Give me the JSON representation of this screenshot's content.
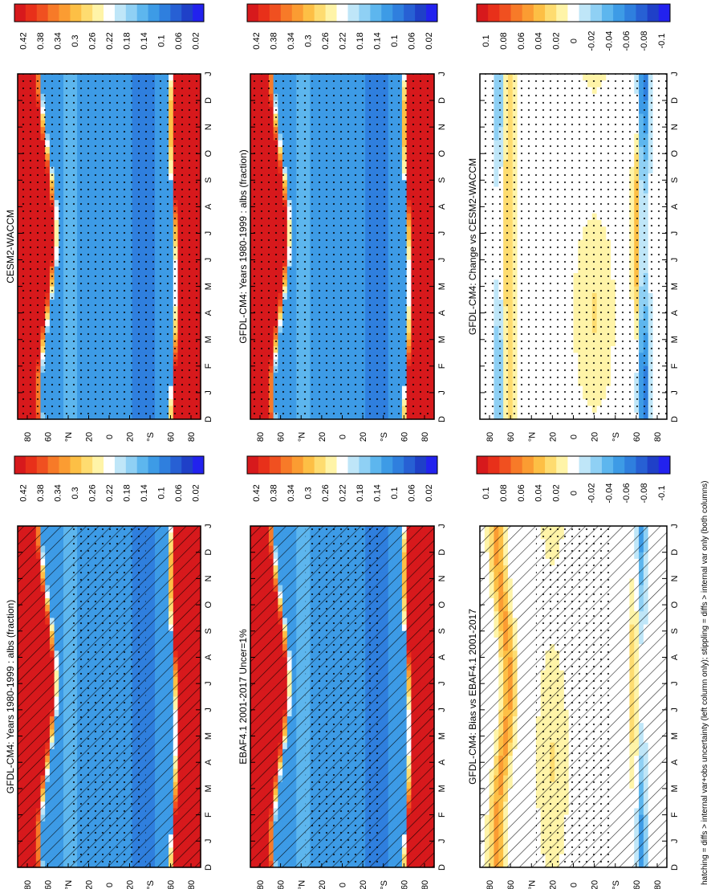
{
  "footer": "hatching = diffs > internal var+obs uncertainty (left column only); stippling = diffs > internal var only (both columns)",
  "palettes": {
    "abs": [
      "#d7191c",
      "#e8301a",
      "#f05020",
      "#f77a28",
      "#fb9c32",
      "#fdbf45",
      "#fedc70",
      "#fff4a8",
      "#ffffff",
      "#bfe6f8",
      "#8fd0f4",
      "#5db6ee",
      "#3d9be6",
      "#2f7fde",
      "#2760d4",
      "#1f40c8",
      "#2222ee"
    ],
    "diff": [
      "#d7191c",
      "#e8301a",
      "#f05020",
      "#f77a28",
      "#fb9c32",
      "#fdbf45",
      "#fedc70",
      "#fff4a8",
      "#ffffff",
      "#bfe6f8",
      "#8fd0f4",
      "#5db6ee",
      "#3d9be6",
      "#2f7fde",
      "#2760d4",
      "#1f40c8",
      "#2222ee"
    ]
  },
  "chart_data": [
    {
      "id": "p1",
      "type": "heatmap",
      "title": "GFDL-CM4: Years 1980-1999 : albs (fraction)",
      "x_ticks": [
        "D",
        "J",
        "F",
        "M",
        "A",
        "M",
        "J",
        "J",
        "A",
        "S",
        "O",
        "N",
        "D",
        "J"
      ],
      "y_ticks": [
        "80",
        "60",
        "°N",
        "20",
        "0",
        "20",
        "°S",
        "60",
        "80"
      ],
      "colorbar": [
        "0.42",
        "0.38",
        "0.34",
        "0.3",
        "0.26",
        "0.22",
        "0.18",
        "0.14",
        "0.1",
        "0.06",
        "0.02"
      ],
      "field": "abs",
      "hatch": true,
      "stipple": true
    },
    {
      "id": "p2",
      "type": "heatmap",
      "title": "GFDL-CM4: Years 1980-1999 : albs (fraction)",
      "x_ticks": [
        "D",
        "J",
        "F",
        "M",
        "A",
        "M",
        "J",
        "J",
        "A",
        "S",
        "O",
        "N",
        "D",
        "J"
      ],
      "y_ticks": [
        "80",
        "60",
        "°N",
        "20",
        "0",
        "20",
        "°S",
        "60",
        "80"
      ],
      "colorbar": [
        "0.42",
        "0.38",
        "0.34",
        "0.3",
        "0.26",
        "0.22",
        "0.18",
        "0.14",
        "0.1",
        "0.06",
        "0.02"
      ],
      "field": "abs",
      "hatch": false,
      "stipple": true
    },
    {
      "id": "p3",
      "type": "heatmap",
      "title": "EBAF4.1 2001-2017 Uncer=1%",
      "x_ticks": [
        "D",
        "J",
        "F",
        "M",
        "A",
        "M",
        "J",
        "J",
        "A",
        "S",
        "O",
        "N",
        "D",
        "J"
      ],
      "y_ticks": [
        "80",
        "60",
        "°N",
        "20",
        "0",
        "20",
        "°S",
        "60",
        "80"
      ],
      "colorbar": [
        "0.42",
        "0.38",
        "0.34",
        "0.3",
        "0.26",
        "0.22",
        "0.18",
        "0.14",
        "0.1",
        "0.06",
        "0.02"
      ],
      "field": "abs",
      "hatch": true,
      "stipple": true
    },
    {
      "id": "p4",
      "type": "heatmap",
      "title": "CESM2-WACCM",
      "x_ticks": [
        "D",
        "J",
        "F",
        "M",
        "A",
        "M",
        "J",
        "J",
        "A",
        "S",
        "O",
        "N",
        "D",
        "J"
      ],
      "y_ticks": [
        "80",
        "60",
        "°N",
        "20",
        "0",
        "20",
        "°S",
        "60",
        "80"
      ],
      "colorbar": [
        "0.42",
        "0.38",
        "0.34",
        "0.3",
        "0.26",
        "0.22",
        "0.18",
        "0.14",
        "0.1",
        "0.06",
        "0.02"
      ],
      "field": "abs",
      "hatch": false,
      "stipple": true
    },
    {
      "id": "p5",
      "type": "heatmap",
      "title": "GFDL-CM4: Bias vs EBAF4.1 2001-2017",
      "x_ticks": [
        "D",
        "J",
        "F",
        "M",
        "A",
        "M",
        "J",
        "J",
        "A",
        "S",
        "O",
        "N",
        "D",
        "J"
      ],
      "y_ticks": [
        "80",
        "60",
        "°N",
        "20",
        "0",
        "20",
        "°S",
        "60",
        "80"
      ],
      "colorbar": [
        "0.1",
        "0.08",
        "0.06",
        "0.04",
        "0.02",
        "0",
        "-0.02",
        "-0.04",
        "-0.06",
        "-0.08",
        "-0.1"
      ],
      "field": "bias",
      "hatch": true,
      "stipple": true
    },
    {
      "id": "p6",
      "type": "heatmap",
      "title": "GFDL-CM4: Change vs CESM2-WACCM",
      "x_ticks": [
        "D",
        "J",
        "F",
        "M",
        "A",
        "M",
        "J",
        "J",
        "A",
        "S",
        "O",
        "N",
        "D",
        "J"
      ],
      "y_ticks": [
        "80",
        "60",
        "°N",
        "20",
        "0",
        "20",
        "°S",
        "60",
        "80"
      ],
      "colorbar": [
        "0.1",
        "0.08",
        "0.06",
        "0.04",
        "0.02",
        "0",
        "-0.02",
        "-0.04",
        "-0.06",
        "-0.08",
        "-0.1"
      ],
      "field": "change",
      "hatch": false,
      "stipple": true
    }
  ]
}
